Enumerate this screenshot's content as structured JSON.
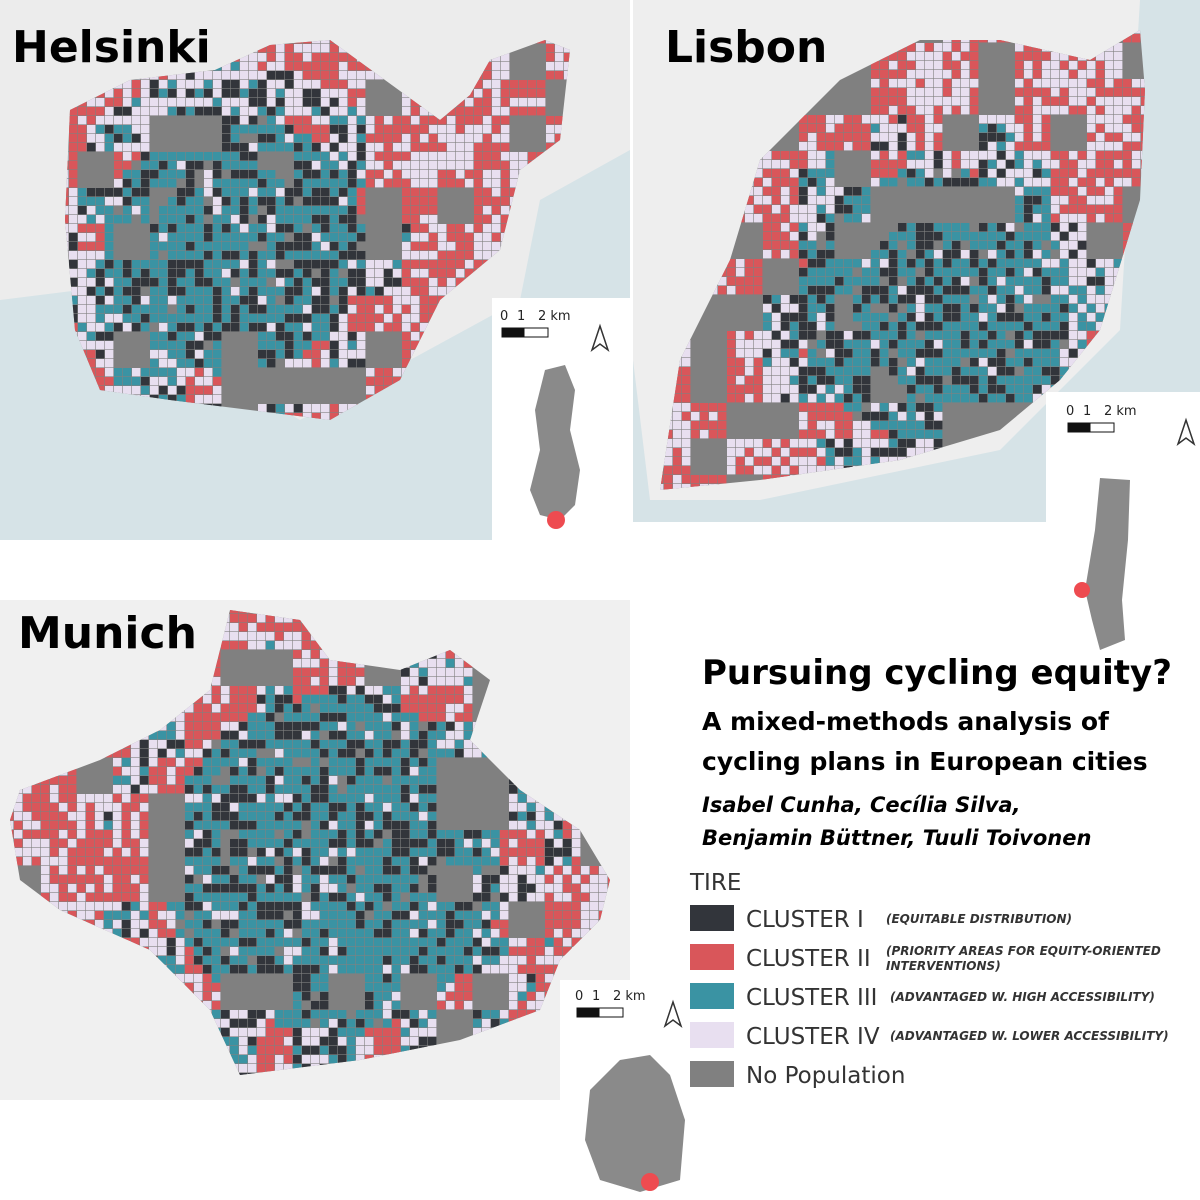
{
  "maps": [
    {
      "city": "Helsinki",
      "scale": [
        "0",
        "1",
        "2 km"
      ]
    },
    {
      "city": "Lisbon",
      "scale": [
        "0",
        "1",
        "2 km"
      ]
    },
    {
      "city": "Munich",
      "scale": [
        "0",
        "1",
        "2 km"
      ]
    }
  ],
  "title": "Pursuing cycling equity?",
  "subtitle": [
    "A mixed-methods analysis of",
    "cycling plans in European cities"
  ],
  "authors": [
    "Isabel Cunha, Cecília Silva,",
    "Benjamin Büttner, Tuuli Toivonen"
  ],
  "legend": {
    "title": "TIRE",
    "items": [
      {
        "label": "CLUSTER I",
        "note": [
          "(EQUITABLE DISTRIBUTION)"
        ],
        "color": "#32353b"
      },
      {
        "label": "CLUSTER II",
        "note": [
          "(PRIORITY AREAS  FOR EQUITY-ORIENTED",
          "INTERVENTIONS)"
        ],
        "color": "#d9565a"
      },
      {
        "label": "CLUSTER III",
        "note": [
          "(ADVANTAGED W. HIGH  ACCESSIBILITY)"
        ],
        "color": "#3a93a3"
      },
      {
        "label": "CLUSTER IV",
        "note": [
          "(ADVANTAGED W. LOWER ACCESSIBILITY)"
        ],
        "color": "#e8dff0"
      },
      {
        "label": "No Population",
        "note": [],
        "color": "#808080"
      }
    ]
  }
}
